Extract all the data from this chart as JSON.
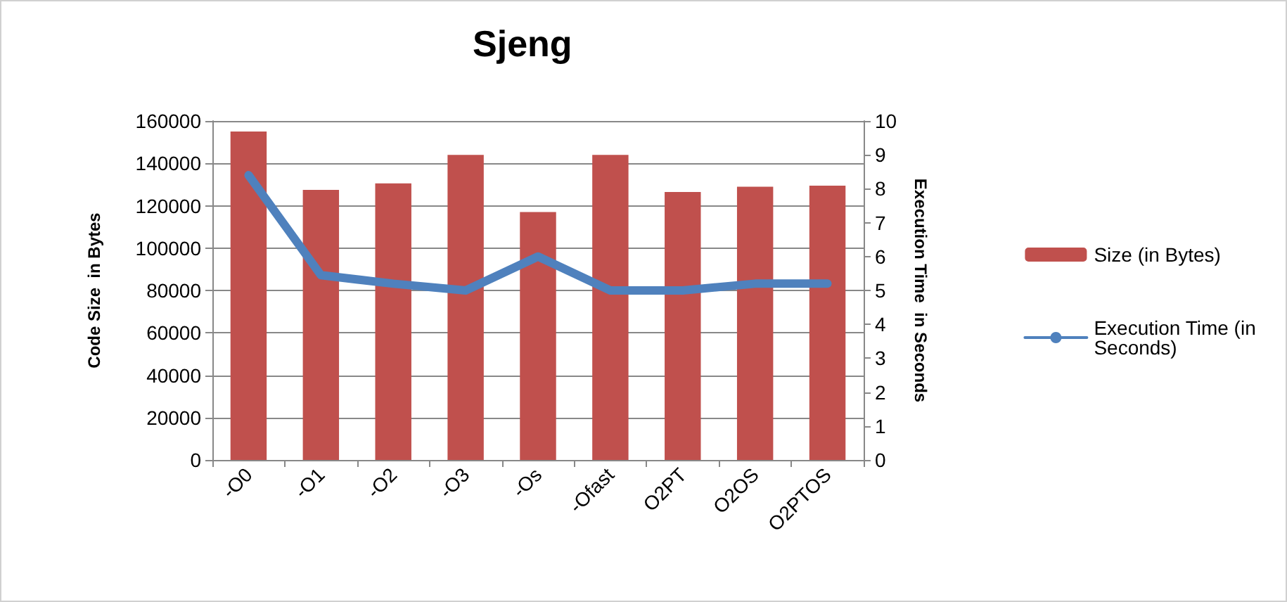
{
  "chart_data": {
    "type": "bar",
    "title": "Sjeng",
    "ylabel": "Code Size  in Bytes",
    "y2label": "Execution Time  in Seconds",
    "categories": [
      "-O0",
      "-O1",
      "-O2",
      "-O3",
      "-Os",
      "-Ofast",
      "O2PT",
      "O2OS",
      "O2PTOS"
    ],
    "series": [
      {
        "name": "Size (in Bytes)",
        "color": "#c0504d",
        "values": [
          155000,
          127500,
          130500,
          144000,
          117000,
          144000,
          126500,
          129000,
          129500
        ]
      },
      {
        "name": "Execution Time (in Seconds)",
        "type": "line",
        "axis": "y2",
        "color": "#4f81bd",
        "values": [
          8.4,
          5.45,
          5.2,
          5.0,
          6.0,
          5.0,
          5.0,
          5.2,
          5.2
        ]
      }
    ],
    "ylim": [
      0,
      160000
    ],
    "yticks": [
      0,
      20000,
      40000,
      60000,
      80000,
      100000,
      120000,
      140000,
      160000
    ],
    "y2lim": [
      0,
      10
    ],
    "y2ticks": [
      0,
      1,
      2,
      3,
      4,
      5,
      6,
      7,
      8,
      9,
      10
    ],
    "grid": "y",
    "legend": "right",
    "marker": "none"
  }
}
